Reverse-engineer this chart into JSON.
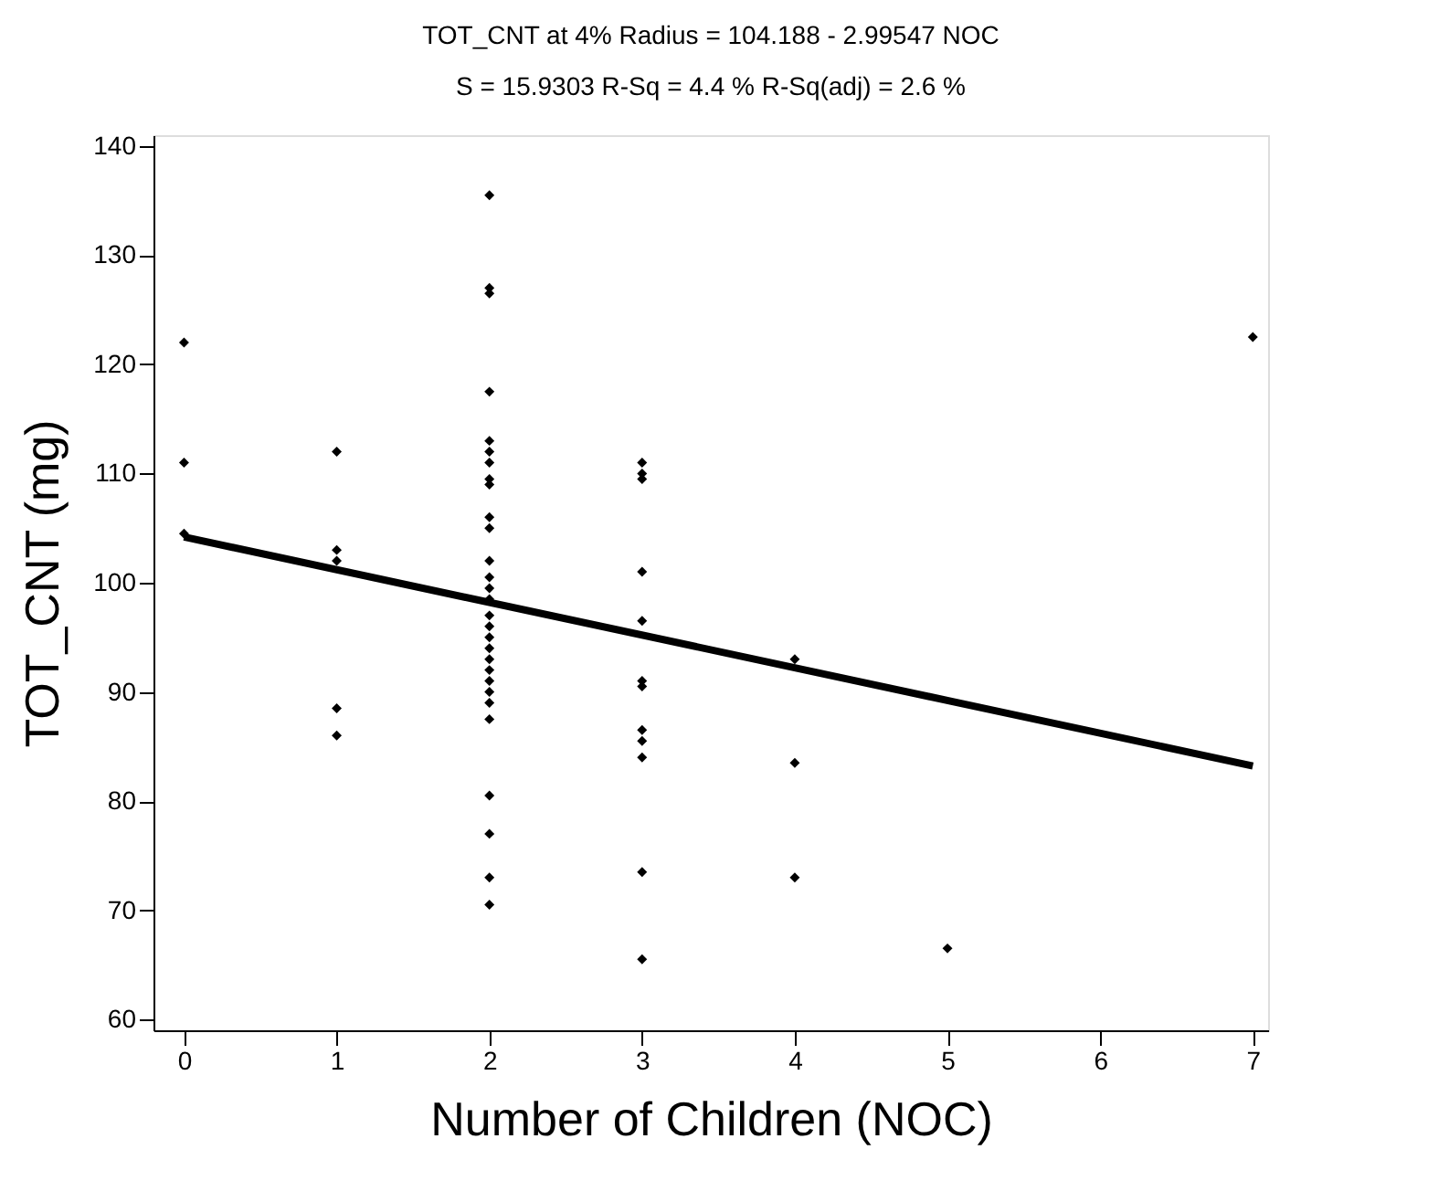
{
  "chart_data": {
    "type": "scatter",
    "title": "TOT_CNT at 4% Radius = 104.188 - 2.99547 NOC",
    "subtitle": "S = 15.9303      R-Sq = 4.4 %      R-Sq(adj) = 2.6 %",
    "xlabel": "Number of Children (NOC)",
    "ylabel": "TOT_CNT (mg)",
    "series": [
      {
        "color": "#000000",
        "marker": "diamond",
        "x": [
          0,
          0,
          0,
          1,
          1,
          1,
          1,
          1,
          2,
          2,
          2,
          2,
          2,
          2,
          2,
          2,
          2,
          2,
          2,
          2,
          2,
          2,
          2,
          2,
          2,
          2,
          2,
          2,
          2,
          2,
          2,
          2,
          2,
          2,
          2,
          2,
          2,
          3,
          3,
          3,
          3,
          3,
          3,
          3,
          3,
          3,
          3,
          3,
          3,
          4,
          4,
          4,
          5,
          7
        ],
        "values": [
          122,
          111,
          104.5,
          112,
          103,
          102,
          88.5,
          86,
          135.5,
          127,
          126.5,
          117.5,
          113,
          112,
          111,
          109.5,
          109,
          106,
          105,
          102,
          100.5,
          99.5,
          98.5,
          97,
          96,
          95,
          94,
          93,
          92,
          91,
          90,
          89,
          87.5,
          80.5,
          77,
          73,
          70.5,
          111,
          110,
          109.5,
          101,
          96.5,
          91,
          90.5,
          86.5,
          85.5,
          84,
          73.5,
          65.5,
          93,
          83.5,
          73,
          66.5,
          122.5
        ]
      },
      {
        "type": "line",
        "color": "#000000",
        "marker": "none",
        "line_style": "solid",
        "x": [
          0,
          7
        ],
        "values": [
          104.188,
          83.22
        ]
      }
    ],
    "xlim": [
      -0.2,
      7.1
    ],
    "ylim": [
      59,
      141
    ],
    "xticks": [
      0,
      1,
      2,
      3,
      4,
      5,
      6,
      7
    ],
    "yticks": [
      60,
      70,
      80,
      90,
      100,
      110,
      120,
      130,
      140
    ],
    "grid": false,
    "legend": false
  }
}
